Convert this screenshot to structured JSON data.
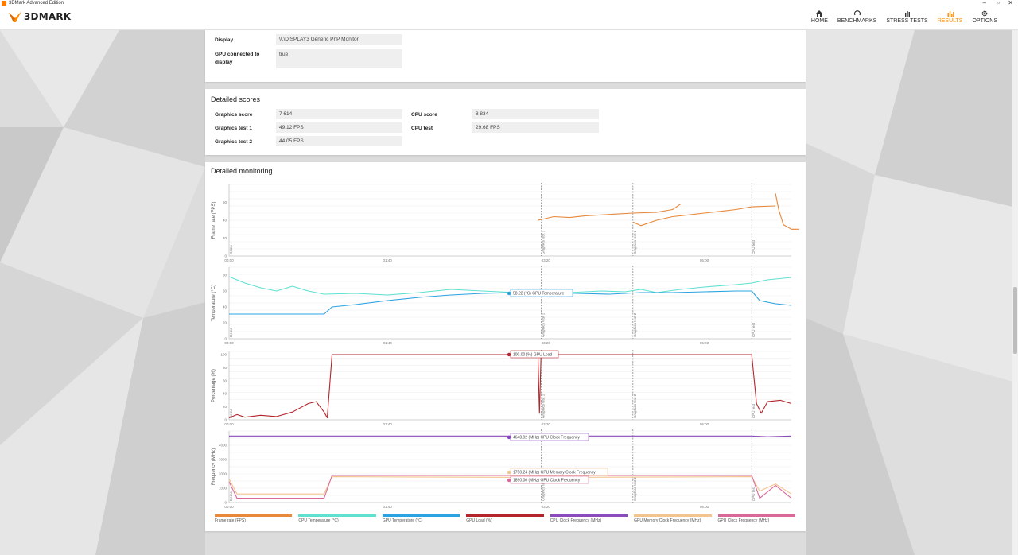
{
  "window": {
    "title": "3DMark Advanced Edition"
  },
  "app": {
    "logo": "3DMARK",
    "accent": "#ff8a00"
  },
  "nav": [
    {
      "label": "HOME",
      "icon": "home-icon",
      "active": false
    },
    {
      "label": "BENCHMARKS",
      "icon": "gauge-icon",
      "active": false
    },
    {
      "label": "STRESS TESTS",
      "icon": "bar-chart-icon",
      "active": false
    },
    {
      "label": "RESULTS",
      "icon": "results-icon",
      "active": true
    },
    {
      "label": "OPTIONS",
      "icon": "gear-icon",
      "active": false
    }
  ],
  "system_info": {
    "display_label": "Display",
    "display_value": "\\\\.\\DISPLAY3 Generic PnP Monitor",
    "gpu_connected_label": "GPU connected to display",
    "gpu_connected_value": "true"
  },
  "detailed_scores": {
    "title": "Detailed scores",
    "graphics_score_label": "Graphics score",
    "graphics_score_value": "7 614",
    "graphics_test1_label": "Graphics test 1",
    "graphics_test1_value": "49.12 FPS",
    "graphics_test2_label": "Graphics test 2",
    "graphics_test2_value": "44.05 FPS",
    "cpu_score_label": "CPU score",
    "cpu_score_value": "8 834",
    "cpu_test_label": "CPU test",
    "cpu_test_value": "29.68 FPS"
  },
  "monitoring": {
    "title": "Detailed monitoring",
    "time_ticks": [
      "00:00",
      "01:40",
      "03:20",
      "05:00"
    ],
    "markers": [
      "Demo",
      "Graphics test 1",
      "Graphics test 2",
      "CPU test"
    ],
    "tooltips": {
      "gpu_temp": "58.22 (°C) GPU Temperature",
      "gpu_load": "100.00 (%) GPU Load",
      "cpu_clock": "4648.92 (MHz) CPU Clock Frequency",
      "gpu_mem_clock": "1750.24 (MHz) GPU Memory Clock Frequency",
      "gpu_clock": "1890.00 (MHz) GPU Clock Frequency"
    },
    "legend": [
      {
        "label": "Frame rate (FPS)",
        "color": "#e8883a"
      },
      {
        "label": "CPU Temperature (°C)",
        "color": "#5fe0d0"
      },
      {
        "label": "GPU Temperature (°C)",
        "color": "#2ba3e0"
      },
      {
        "label": "GPU Load (%)",
        "color": "#b3252b"
      },
      {
        "label": "CPU Clock Frequency (MHz)",
        "color": "#8a4cbc"
      },
      {
        "label": "GPU Memory Clock Frequency (MHz)",
        "color": "#f2c48e"
      },
      {
        "label": "GPU Clock Frequency (MHz)",
        "color": "#d86a9a"
      }
    ]
  },
  "chart_data": [
    {
      "type": "line",
      "ylabel": "Frame rate (FPS)",
      "yticks": [
        0,
        20,
        40,
        60
      ],
      "ylim": [
        0,
        80
      ],
      "series": [
        {
          "name": "Frame rate (FPS)",
          "color": "#e8883a",
          "segments": [
            [
              [
                195,
                40
              ],
              [
                205,
                44
              ],
              [
                215,
                43
              ],
              [
                225,
                45
              ],
              [
                235,
                46
              ],
              [
                255,
                48
              ],
              [
                270,
                49
              ],
              [
                280,
                52
              ],
              [
                285,
                58
              ]
            ],
            [
              [
                255,
                38
              ],
              [
                260,
                34
              ],
              [
                270,
                40
              ],
              [
                280,
                44
              ],
              [
                290,
                46
              ],
              [
                300,
                48
              ],
              [
                310,
                50
              ],
              [
                320,
                52
              ],
              [
                330,
                55
              ],
              [
                345,
                56
              ]
            ],
            [
              [
                345,
                70
              ],
              [
                347,
                52
              ],
              [
                350,
                35
              ],
              [
                355,
                30
              ],
              [
                360,
                30
              ]
            ]
          ]
        }
      ]
    },
    {
      "type": "line",
      "ylabel": "Temperature (°C)",
      "yticks": [
        0,
        20,
        40,
        60,
        80
      ],
      "ylim": [
        0,
        90
      ],
      "series": [
        {
          "name": "CPU Temperature (°C)",
          "color": "#5fe0d0",
          "points": [
            [
              0,
              78
            ],
            [
              10,
              70
            ],
            [
              20,
              64
            ],
            [
              30,
              60
            ],
            [
              40,
              66
            ],
            [
              50,
              60
            ],
            [
              60,
              56
            ],
            [
              80,
              57
            ],
            [
              100,
              55
            ],
            [
              120,
              58
            ],
            [
              140,
              62
            ],
            [
              160,
              60
            ],
            [
              180,
              58
            ],
            [
              195,
              58
            ],
            [
              215,
              58
            ],
            [
              235,
              60
            ],
            [
              250,
              59
            ],
            [
              260,
              62
            ],
            [
              270,
              58
            ],
            [
              285,
              62
            ],
            [
              300,
              65
            ],
            [
              320,
              68
            ],
            [
              330,
              70
            ],
            [
              340,
              74
            ],
            [
              350,
              76
            ],
            [
              355,
              77
            ]
          ]
        },
        {
          "name": "GPU Temperature (°C)",
          "color": "#2ba3e0",
          "points": [
            [
              0,
              31
            ],
            [
              60,
              31
            ],
            [
              65,
              40
            ],
            [
              80,
              43
            ],
            [
              100,
              48
            ],
            [
              120,
              52
            ],
            [
              140,
              55
            ],
            [
              160,
              57
            ],
            [
              180,
              58
            ],
            [
              195,
              58
            ],
            [
              220,
              57
            ],
            [
              240,
              56
            ],
            [
              260,
              58
            ],
            [
              280,
              58
            ],
            [
              300,
              59
            ],
            [
              320,
              60
            ],
            [
              330,
              60
            ],
            [
              335,
              48
            ],
            [
              345,
              44
            ],
            [
              355,
              42
            ]
          ]
        }
      ]
    },
    {
      "type": "line",
      "ylabel": "Percentage (%)",
      "yticks": [
        0,
        20,
        40,
        60,
        80,
        100
      ],
      "ylim": [
        0,
        105
      ],
      "series": [
        {
          "name": "GPU Load (%)",
          "color": "#b3252b",
          "points": [
            [
              0,
              3
            ],
            [
              5,
              8
            ],
            [
              10,
              4
            ],
            [
              20,
              7
            ],
            [
              30,
              5
            ],
            [
              40,
              12
            ],
            [
              50,
              25
            ],
            [
              55,
              28
            ],
            [
              60,
              12
            ],
            [
              62,
              3
            ],
            [
              65,
              100
            ],
            [
              195,
              100
            ],
            [
              196,
              10
            ],
            [
              197,
              100
            ],
            [
              330,
              100
            ],
            [
              333,
              25
            ],
            [
              336,
              10
            ],
            [
              340,
              28
            ],
            [
              348,
              30
            ],
            [
              355,
              25
            ]
          ]
        }
      ]
    },
    {
      "type": "line",
      "ylabel": "Frequency (MHz)",
      "yticks": [
        0,
        1000,
        2000,
        3000,
        4000
      ],
      "ylim": [
        0,
        5000
      ],
      "series": [
        {
          "name": "CPU Clock Frequency (MHz)",
          "color": "#8a4cbc",
          "points": [
            [
              0,
              4650
            ],
            [
              60,
              4650
            ],
            [
              150,
              4650
            ],
            [
              200,
              4650
            ],
            [
              260,
              4650
            ],
            [
              330,
              4650
            ],
            [
              340,
              4600
            ],
            [
              355,
              4650
            ]
          ]
        },
        {
          "name": "GPU Memory Clock Frequency (MHz)",
          "color": "#f2c48e",
          "points": [
            [
              0,
              1650
            ],
            [
              5,
              600
            ],
            [
              60,
              600
            ],
            [
              65,
              1800
            ],
            [
              200,
              1750
            ],
            [
              330,
              1800
            ],
            [
              335,
              800
            ],
            [
              345,
              1300
            ],
            [
              355,
              600
            ]
          ]
        },
        {
          "name": "GPU Clock Frequency (MHz)",
          "color": "#d86a9a",
          "points": [
            [
              0,
              1450
            ],
            [
              5,
              300
            ],
            [
              60,
              300
            ],
            [
              65,
              1890
            ],
            [
              200,
              1890
            ],
            [
              330,
              1890
            ],
            [
              335,
              300
            ],
            [
              345,
              1200
            ],
            [
              355,
              300
            ]
          ]
        }
      ]
    }
  ]
}
